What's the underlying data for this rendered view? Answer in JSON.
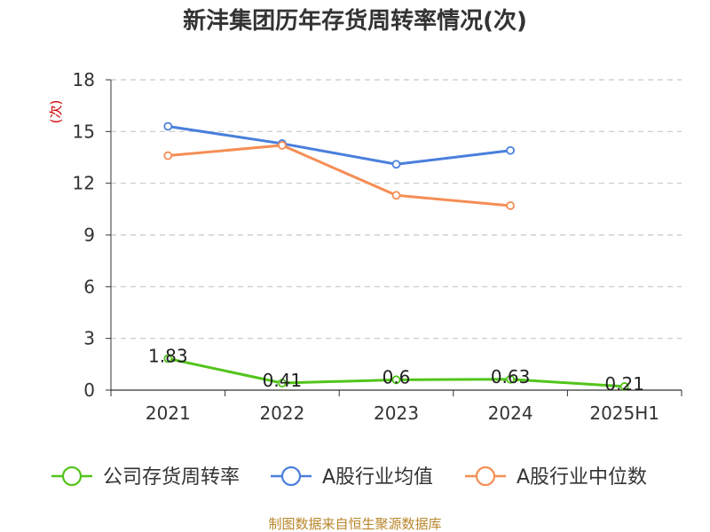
{
  "chart_data": {
    "type": "line",
    "title": "新沣集团历年存货周转率情况(次)",
    "ylabel": "(次)",
    "xlabel": "",
    "categories": [
      "2021",
      "2022",
      "2023",
      "2024",
      "2025H1"
    ],
    "yticks": [
      "0",
      "3",
      "6",
      "9",
      "12",
      "15",
      "18"
    ],
    "ylim": [
      0,
      18
    ],
    "grid": true,
    "legend_position": "bottom",
    "series": [
      {
        "name": "公司存货周转率",
        "color": "#52c41a",
        "values": [
          1.83,
          0.41,
          0.6,
          0.63,
          0.21
        ],
        "labels": [
          "1.83",
          "0.41",
          "0.6",
          "0.63",
          "0.21"
        ]
      },
      {
        "name": "A股行业均值",
        "color": "#4a7fdc",
        "values": [
          15.3,
          14.3,
          13.1,
          13.9,
          null
        ]
      },
      {
        "name": "A股行业中位数",
        "color": "#f58e55",
        "values": [
          13.6,
          14.2,
          11.3,
          10.7,
          null
        ]
      }
    ],
    "source": "制图数据来自恒生聚源数据库"
  }
}
